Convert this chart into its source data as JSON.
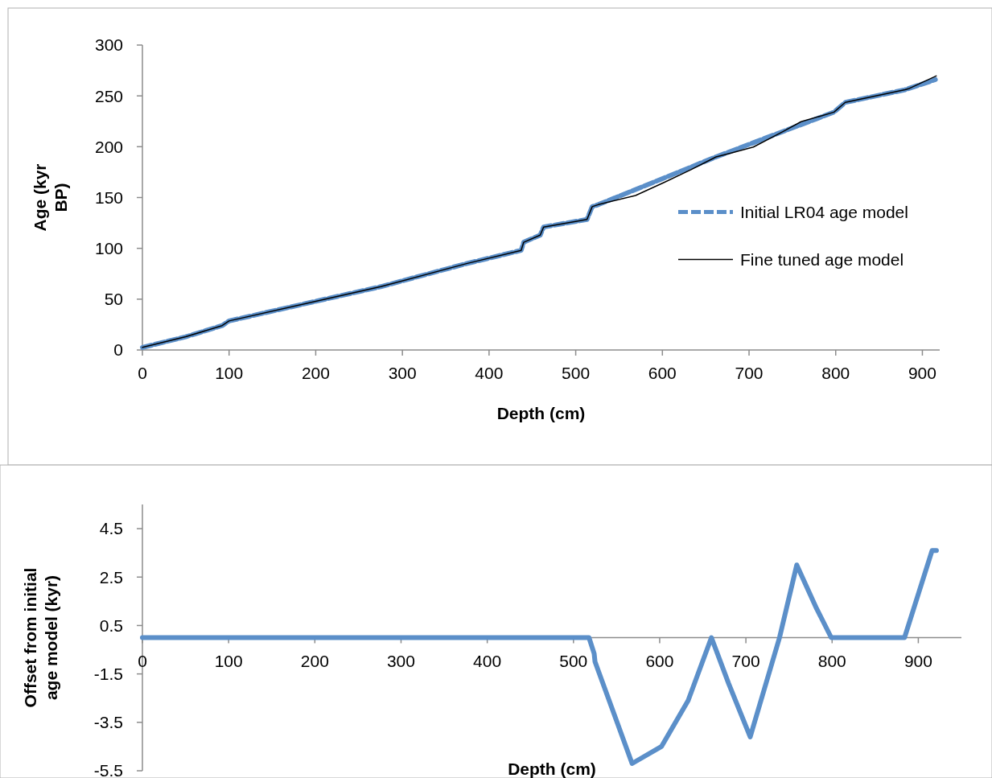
{
  "chart_data": [
    {
      "type": "line",
      "xlabel": "Depth (cm)",
      "ylabel": "Age (kyr BP)",
      "xlim": [
        0,
        920
      ],
      "xticks": [
        0,
        100,
        200,
        300,
        400,
        500,
        600,
        700,
        800,
        900
      ],
      "ylim": [
        0,
        300
      ],
      "yticks": [
        0,
        50,
        100,
        150,
        200,
        250,
        300
      ],
      "grid": false,
      "legend": "right",
      "marker": "none",
      "series": [
        {
          "name": "Initial LR04 age model",
          "color": "#5b8fc9",
          "line_style": "dashed",
          "x": [
            0,
            50,
            92,
            100,
            199,
            275,
            374,
            437,
            440,
            459,
            463,
            513,
            519,
            526,
            662,
            798,
            811,
            880,
            915
          ],
          "values": [
            2.5,
            13,
            24,
            28.6,
            47.7,
            62.3,
            85,
            98,
            106,
            113,
            121,
            128.4,
            141,
            143,
            190,
            234,
            243.6,
            256,
            266
          ]
        },
        {
          "name": "Fine tuned age model",
          "color": "#000000",
          "line_style": "solid",
          "x": [
            0,
            50,
            92,
            100,
            199,
            275,
            374,
            437,
            440,
            459,
            463,
            513,
            519,
            526,
            569,
            602,
            633,
            662,
            680,
            705,
            739,
            760,
            782,
            798,
            811,
            880,
            884,
            916
          ],
          "values": [
            2.5,
            13,
            24,
            28.6,
            47.7,
            62.3,
            85,
            98,
            106,
            113,
            121,
            128.4,
            141,
            143,
            152,
            164.8,
            177.4,
            190,
            193.9,
            199.7,
            214.8,
            224.6,
            230,
            234,
            243.6,
            256,
            257,
            269.6
          ]
        }
      ]
    },
    {
      "type": "line",
      "xlabel": "Depth (cm)",
      "ylabel": "Offset from initial age model (kyr)",
      "xlim": [
        0,
        950
      ],
      "xticks": [
        0,
        100,
        200,
        300,
        400,
        500,
        600,
        700,
        800,
        900
      ],
      "ylim": [
        -5.5,
        5.5
      ],
      "yticks": [
        -5.5,
        -3.5,
        -1.5,
        0.5,
        2.5,
        4.5
      ],
      "grid": false,
      "legend": false,
      "marker": "none",
      "series": [
        {
          "color": "#5b8fc9",
          "line_style": "solid",
          "x": [
            0,
            518,
            524,
            525,
            568,
            602,
            633,
            660,
            680,
            705,
            739,
            759,
            782,
            799,
            884,
            916,
            921
          ],
          "values": [
            0,
            0,
            -0.66,
            -1.0,
            -5.2,
            -4.5,
            -2.6,
            0,
            -1.9,
            -4.1,
            0,
            3.0,
            1.2,
            0,
            0,
            3.6,
            3.6
          ]
        }
      ]
    }
  ]
}
